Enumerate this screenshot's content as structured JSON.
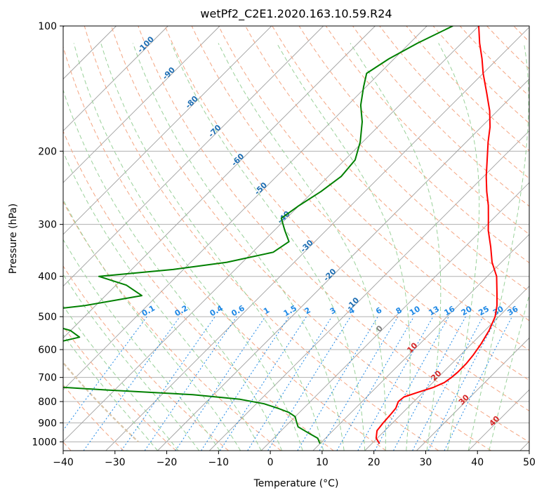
{
  "chart_data": {
    "type": "line",
    "title": "wetPf2_C2E1.2020.163.10.59.R24",
    "xlabel": "Temperature (°C)",
    "ylabel": "Pressure (hPa)",
    "xlim": [
      -40,
      50
    ],
    "ylim": [
      1050,
      100
    ],
    "y_scale": "log",
    "skew": "skew-T",
    "grid": true,
    "x_ticks": [
      -40,
      -30,
      -20,
      -10,
      0,
      10,
      20,
      30,
      40,
      50
    ],
    "y_ticks": [
      100,
      200,
      300,
      400,
      500,
      600,
      700,
      800,
      900,
      1000
    ],
    "series": [
      {
        "color": "#ff0000",
        "pressure": [
          1010,
          980,
          940,
          900,
          860,
          830,
          800,
          780,
          760,
          740,
          720,
          700,
          680,
          650,
          620,
          580,
          540,
          500,
          470,
          440,
          400,
          370,
          340,
          310,
          290,
          270,
          250,
          230,
          210,
          190,
          175,
          160,
          145,
          130,
          120,
          110,
          100
        ],
        "temperature": [
          21.5,
          19.8,
          18.5,
          18.2,
          18.0,
          17.8,
          17.0,
          17.2,
          19.0,
          21.0,
          22.2,
          22.6,
          22.8,
          22.8,
          22.5,
          21.8,
          20.8,
          19.3,
          17.5,
          15.2,
          11.8,
          8.2,
          5.0,
          1.3,
          -1.0,
          -3.5,
          -6.5,
          -9.5,
          -12.5,
          -15.8,
          -18.3,
          -21.5,
          -25.5,
          -30.0,
          -33.0,
          -36.5,
          -40.0
        ]
      },
      {
        "color": "#008000",
        "pressure": [
          1010,
          980,
          950,
          920,
          890,
          870,
          850,
          830,
          810,
          790,
          770,
          750,
          730,
          710,
          700,
          690,
          670,
          640,
          620,
          600,
          580,
          560,
          540,
          520,
          500,
          490,
          470,
          445,
          420,
          400,
          385,
          370,
          350,
          330,
          310,
          290,
          270,
          250,
          230,
          210,
          190,
          170,
          155,
          140,
          130,
          120,
          110,
          100
        ],
        "temperature": [
          10.0,
          8.5,
          5.5,
          2.5,
          1.0,
          0.0,
          -2.0,
          -5.0,
          -8.5,
          -14.0,
          -24.0,
          -42.0,
          -58.0,
          -67.0,
          -67.5,
          -65.0,
          -62.0,
          -60.5,
          -63.0,
          -65.0,
          -61.0,
          -57.0,
          -60.0,
          -66.0,
          -75.0,
          -73.0,
          -62.0,
          -53.0,
          -58.0,
          -65.0,
          -52.0,
          -43.0,
          -36.0,
          -35.0,
          -38.0,
          -41.0,
          -40.0,
          -38.5,
          -37.5,
          -38.0,
          -40.5,
          -44.0,
          -47.5,
          -50.5,
          -52.5,
          -51.0,
          -48.5,
          -45.0
        ]
      }
    ],
    "dry_adiabat_labels": [
      "-100",
      "-90",
      "-80",
      "-70",
      "-60",
      "-50",
      "-40",
      "-30",
      "-20",
      "-10",
      "0",
      "10",
      "20",
      "30",
      "40"
    ],
    "dry_adiabat_values": [
      -100,
      -90,
      -80,
      -70,
      -60,
      -50,
      -40,
      -30,
      -20,
      -10,
      0,
      10,
      20,
      30,
      40
    ],
    "mixing_ratio_labels": [
      "0.1",
      "0.2",
      "0.4",
      "0.6",
      "1",
      "1.5",
      "2",
      "3",
      "4",
      "6",
      "8",
      "10",
      "13",
      "16",
      "20",
      "25",
      "30",
      "36"
    ],
    "mixing_ratio_values": [
      0.1,
      0.2,
      0.4,
      0.6,
      1,
      1.5,
      2,
      3,
      4,
      6,
      8,
      10,
      13,
      16,
      20,
      25,
      30,
      36
    ],
    "colors": {
      "temperature_line": "#ff0000",
      "dewpoint_line": "#008000",
      "grid": "#b0b0b0",
      "isotherm": "#a0a0a0",
      "dry_adiabat": "#f4a582",
      "moist_adiabat": "#9ad19a",
      "mixing_ratio": "#1e88e5",
      "dry_adiabat_label": "#d62728",
      "cold_label": "#1f6fb4",
      "frost_curve": "#d8c4a8"
    }
  }
}
